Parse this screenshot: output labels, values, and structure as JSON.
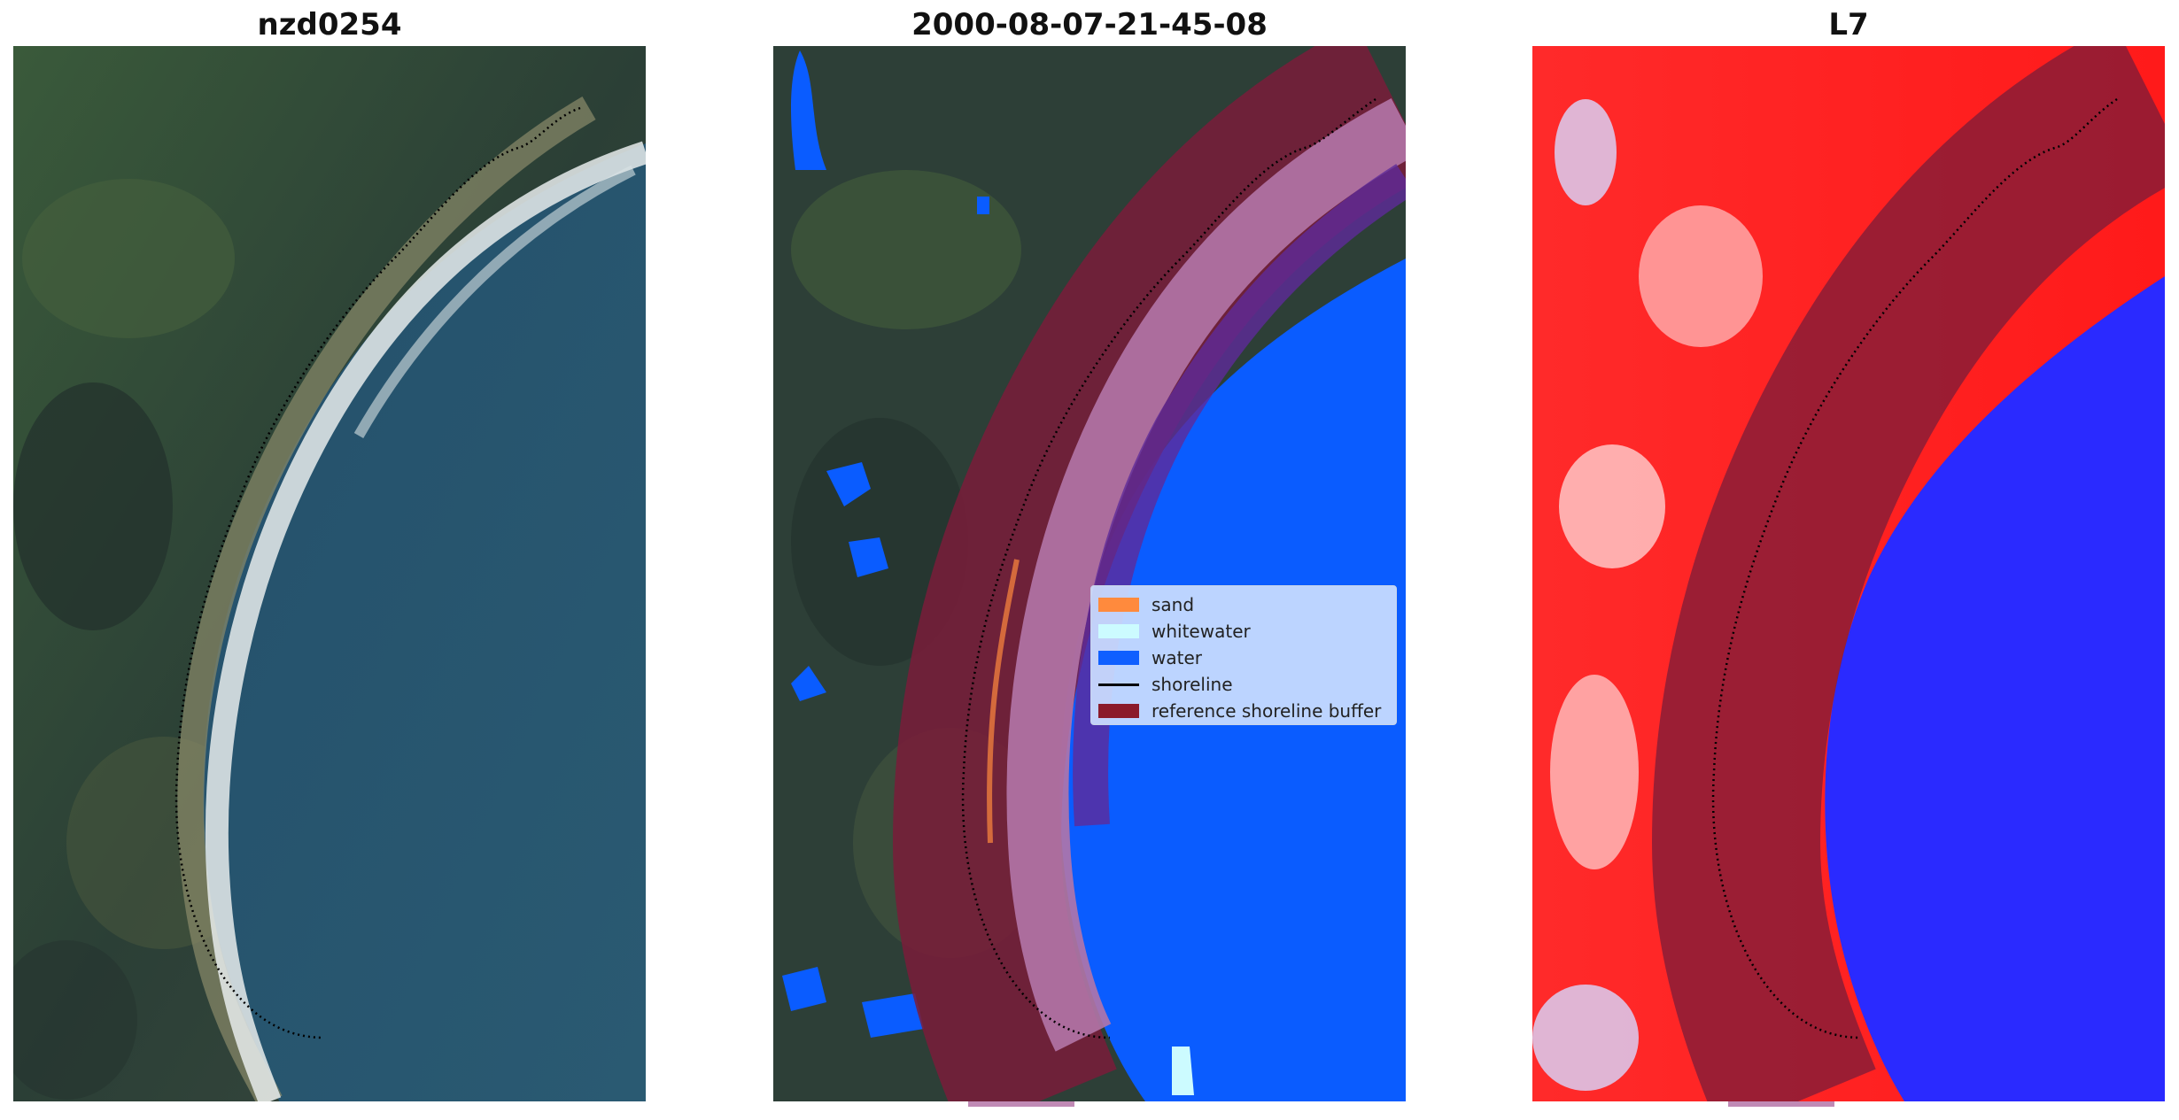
{
  "panels": [
    {
      "title": "nzd0254"
    },
    {
      "title": "2000-08-07-21-45-08"
    },
    {
      "title": "L7"
    }
  ],
  "legend": {
    "items": [
      {
        "label": "sand",
        "color": "#ff8a3d"
      },
      {
        "label": "whitewater",
        "color": "#ccfbff"
      },
      {
        "label": "water",
        "color": "#0f5fff"
      },
      {
        "label": "shoreline",
        "color": "#000000"
      },
      {
        "label": "reference shoreline buffer",
        "color": "#8b1a2a"
      }
    ]
  },
  "colors": {
    "land_dark": "#2c3d36",
    "sea": "#1f4a66",
    "classified_water": "#0a5cff",
    "buffer": "#7a1c3a",
    "index_land": "#ff1a1a",
    "index_water": "#2a2aff"
  }
}
